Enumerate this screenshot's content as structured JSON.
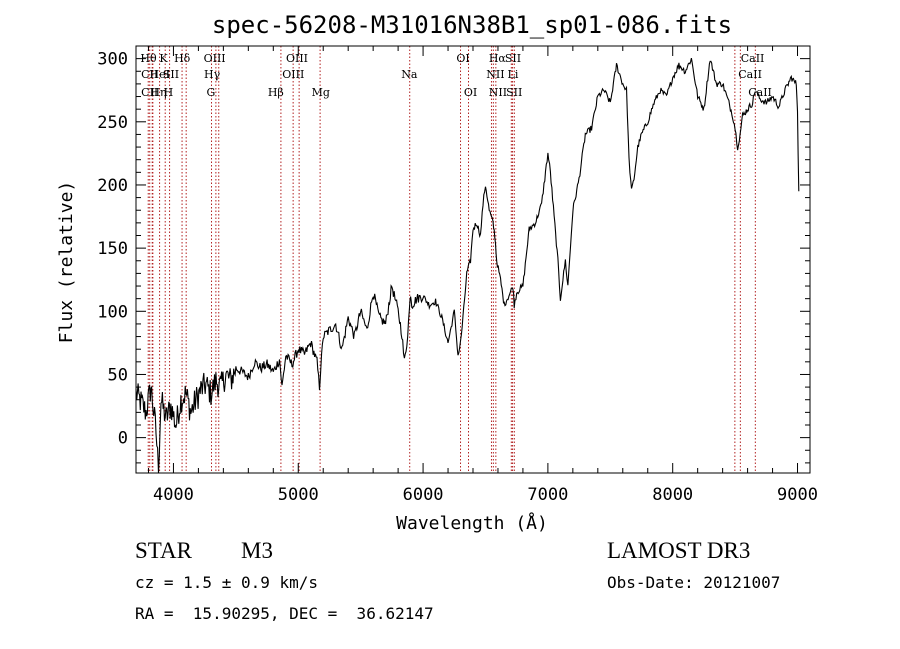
{
  "chart_data": {
    "type": "line",
    "title": "spec-56208-M31016N38B1_sp01-086.fits",
    "xlabel": "Wavelength (Å)",
    "ylabel": "Flux (relative)",
    "xlim": [
      3700,
      9100
    ],
    "ylim": [
      -28,
      310
    ],
    "xticks": [
      4000,
      5000,
      6000,
      7000,
      8000,
      9000
    ],
    "yticks": [
      0,
      50,
      100,
      150,
      200,
      250,
      300
    ],
    "xtick_labels": [
      "4000",
      "5000",
      "6000",
      "7000",
      "8000",
      "9000"
    ],
    "ytick_labels": [
      "0",
      "50",
      "100",
      "150",
      "200",
      "250",
      "300"
    ],
    "series": [
      {
        "name": "spectrum",
        "color": "#000000",
        "x": [
          3700,
          3740,
          3780,
          3820,
          3860,
          3880,
          3900,
          3940,
          3980,
          4020,
          4060,
          4100,
          4140,
          4180,
          4220,
          4260,
          4300,
          4340,
          4380,
          4420,
          4460,
          4500,
          4550,
          4600,
          4650,
          4700,
          4750,
          4800,
          4850,
          4870,
          4900,
          4950,
          5000,
          5050,
          5100,
          5150,
          5170,
          5180,
          5200,
          5250,
          5300,
          5350,
          5400,
          5450,
          5500,
          5550,
          5600,
          5650,
          5700,
          5750,
          5800,
          5830,
          5850,
          5870,
          5890,
          5900,
          5910,
          5950,
          6000,
          6050,
          6100,
          6150,
          6200,
          6250,
          6280,
          6300,
          6320,
          6350,
          6380,
          6400,
          6430,
          6460,
          6480,
          6500,
          6530,
          6560,
          6575,
          6590,
          6620,
          6650,
          6700,
          6720,
          6730,
          6750,
          6800,
          6850,
          6900,
          6950,
          7000,
          7020,
          7050,
          7080,
          7100,
          7120,
          7140,
          7160,
          7180,
          7200,
          7250,
          7300,
          7350,
          7400,
          7450,
          7500,
          7550,
          7600,
          7630,
          7650,
          7670,
          7690,
          7720,
          7750,
          7800,
          7850,
          7900,
          7950,
          8000,
          8050,
          8100,
          8150,
          8200,
          8250,
          8300,
          8350,
          8400,
          8450,
          8480,
          8500,
          8520,
          8540,
          8560,
          8600,
          8640,
          8660,
          8700,
          8750,
          8800,
          8850,
          8900,
          8950,
          8990,
          9000,
          9010
        ],
        "y": [
          35,
          28,
          20,
          40,
          5,
          -25,
          30,
          15,
          25,
          10,
          30,
          35,
          20,
          30,
          38,
          42,
          35,
          45,
          40,
          50,
          45,
          55,
          52,
          48,
          60,
          55,
          58,
          52,
          62,
          40,
          65,
          58,
          70,
          66,
          75,
          60,
          40,
          55,
          80,
          85,
          90,
          70,
          95,
          80,
          100,
          85,
          115,
          95,
          90,
          120,
          100,
          82,
          60,
          75,
          100,
          115,
          105,
          110,
          112,
          105,
          108,
          95,
          75,
          100,
          65,
          75,
          95,
          130,
          140,
          165,
          170,
          160,
          185,
          200,
          180,
          170,
          160,
          140,
          125,
          105,
          115,
          120,
          105,
          115,
          120,
          165,
          170,
          185,
          225,
          210,
          175,
          140,
          110,
          125,
          140,
          120,
          150,
          180,
          205,
          240,
          245,
          270,
          275,
          265,
          295,
          280,
          275,
          220,
          195,
          205,
          230,
          240,
          250,
          265,
          275,
          270,
          285,
          295,
          290,
          300,
          270,
          260,
          300,
          280,
          280,
          265,
          255,
          245,
          230,
          240,
          255,
          260,
          265,
          275,
          268,
          265,
          270,
          262,
          275,
          285,
          280,
          260,
          195
        ]
      }
    ],
    "lines": [
      {
        "name": "Hθ",
        "wl": 3798
      },
      {
        "name": "CII",
        "wl": 3810
      },
      {
        "name": "CII",
        "wl": 3830
      },
      {
        "name": "Hη",
        "wl": 3835
      },
      {
        "name": "K",
        "wl": 3934
      },
      {
        "name": "HeI",
        "wl": 3889
      },
      {
        "name": "H",
        "wl": 3969
      },
      {
        "name": "SII",
        "wl": 4069
      },
      {
        "name": "Hδ",
        "wl": 4102
      },
      {
        "name": "OIII",
        "wl": 4363
      },
      {
        "name": "Hγ",
        "wl": 4340
      },
      {
        "name": "G",
        "wl": 4305
      },
      {
        "name": "Hβ",
        "wl": 4861
      },
      {
        "name": "OIII",
        "wl": 4959
      },
      {
        "name": "OIII",
        "wl": 5007
      },
      {
        "name": "Mg",
        "wl": 5175
      },
      {
        "name": "Na",
        "wl": 5893
      },
      {
        "name": "OI",
        "wl": 6300
      },
      {
        "name": "OI",
        "wl": 6364
      },
      {
        "name": "NII",
        "wl": 6548
      },
      {
        "name": "Hα",
        "wl": 6563
      },
      {
        "name": "NII",
        "wl": 6583
      },
      {
        "name": "SII",
        "wl": 6717
      },
      {
        "name": "Li",
        "wl": 6707
      },
      {
        "name": "SII",
        "wl": 6731
      },
      {
        "name": "CaII",
        "wl": 8498
      },
      {
        "name": "CaII",
        "wl": 8542
      },
      {
        "name": "CaII",
        "wl": 8662
      }
    ],
    "line_labels": [
      {
        "text": "Hθ",
        "wl": 3800,
        "row": 0
      },
      {
        "text": "K",
        "wl": 3920,
        "row": 0
      },
      {
        "text": "Hδ",
        "wl": 4070,
        "row": 0
      },
      {
        "text": "OIII",
        "wl": 4330,
        "row": 0
      },
      {
        "text": "OIII",
        "wl": 4990,
        "row": 0
      },
      {
        "text": "OI",
        "wl": 6320,
        "row": 0
      },
      {
        "text": "Hα",
        "wl": 6595,
        "row": 0
      },
      {
        "text": "SII",
        "wl": 6720,
        "row": 0
      },
      {
        "text": "CaII",
        "wl": 8640,
        "row": 0
      },
      {
        "text": "CII",
        "wl": 3810,
        "row": 1
      },
      {
        "text": "HeI",
        "wl": 3890,
        "row": 1
      },
      {
        "text": "SII",
        "wl": 3980,
        "row": 1
      },
      {
        "text": "Hγ",
        "wl": 4310,
        "row": 1
      },
      {
        "text": "OIII",
        "wl": 4960,
        "row": 1
      },
      {
        "text": "Na",
        "wl": 5890,
        "row": 1
      },
      {
        "text": "NII",
        "wl": 6580,
        "row": 1
      },
      {
        "text": "Li",
        "wl": 6720,
        "row": 1
      },
      {
        "text": "CaII",
        "wl": 8620,
        "row": 1
      },
      {
        "text": "CII",
        "wl": 3810,
        "row": 2
      },
      {
        "text": "Hη",
        "wl": 3880,
        "row": 2
      },
      {
        "text": "H",
        "wl": 3960,
        "row": 2
      },
      {
        "text": "G",
        "wl": 4300,
        "row": 2
      },
      {
        "text": "Hβ",
        "wl": 4820,
        "row": 2
      },
      {
        "text": "Mg",
        "wl": 5180,
        "row": 2
      },
      {
        "text": "OI",
        "wl": 6380,
        "row": 2
      },
      {
        "text": "NII",
        "wl": 6600,
        "row": 2
      },
      {
        "text": "SII",
        "wl": 6730,
        "row": 2
      },
      {
        "text": "CaII",
        "wl": 8700,
        "row": 2
      }
    ],
    "line_color": "#b22222"
  },
  "info": {
    "object_class": "STAR",
    "subclass": "M3",
    "survey": "LAMOST DR3",
    "cz": "cz = 1.5 ± 0.9 km/s",
    "obs_date": "Obs-Date: 20121007",
    "coords": "RA =  15.90295, DEC =  36.62147"
  }
}
